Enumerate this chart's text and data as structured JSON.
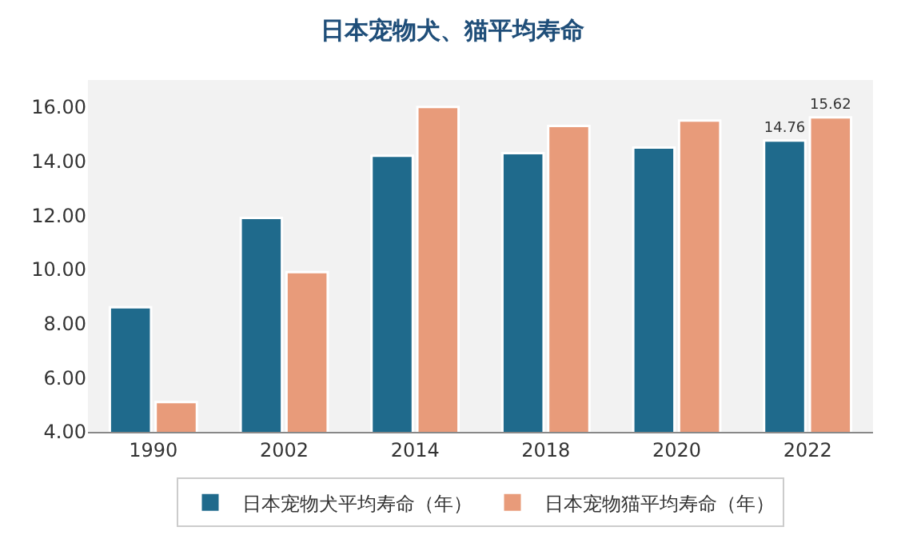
{
  "chart_data": {
    "type": "bar",
    "title": "日本宠物犬、猫平均寿命",
    "categories": [
      "1990",
      "2002",
      "2014",
      "2018",
      "2020",
      "2022"
    ],
    "series": [
      {
        "name": "日本宠物犬平均寿命（年）",
        "color": "#1f6a8c",
        "values": [
          8.6,
          11.9,
          14.2,
          14.3,
          14.5,
          14.76
        ],
        "value_labels": [
          null,
          null,
          null,
          null,
          null,
          "14.76"
        ]
      },
      {
        "name": "日本宠物猫平均寿命（年）",
        "color": "#e89b7a",
        "values": [
          5.1,
          9.9,
          16.0,
          15.3,
          15.5,
          15.62
        ],
        "value_labels": [
          null,
          null,
          null,
          null,
          null,
          "15.62"
        ]
      }
    ],
    "ylim": [
      4,
      17
    ],
    "yticks": [
      {
        "value": 4,
        "label": "4.00"
      },
      {
        "value": 6,
        "label": "6.00"
      },
      {
        "value": 8,
        "label": "8.00"
      },
      {
        "value": 10,
        "label": "10.00"
      },
      {
        "value": 12,
        "label": "12.00"
      },
      {
        "value": 14,
        "label": "14.00"
      },
      {
        "value": 16,
        "label": "16.00"
      }
    ],
    "grid": false,
    "legend": "bottom"
  }
}
